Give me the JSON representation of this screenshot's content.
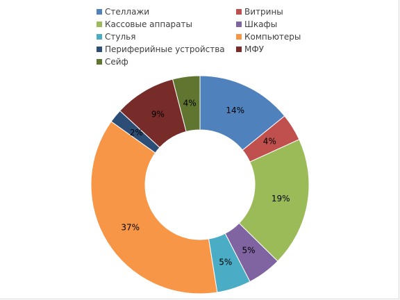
{
  "chart_data": {
    "type": "donut",
    "series": [
      {
        "name": "Стеллажи",
        "value": 14,
        "label": "14%",
        "color": "#4f81bd"
      },
      {
        "name": "Витрины",
        "value": 4,
        "label": "4%",
        "color": "#c0504d"
      },
      {
        "name": "Кассовые аппараты",
        "value": 19,
        "label": "19%",
        "color": "#9bbb59"
      },
      {
        "name": "Шкафы",
        "value": 5,
        "label": "5%",
        "color": "#8064a2"
      },
      {
        "name": "Стулья",
        "value": 5,
        "label": "5%",
        "color": "#4bacc6"
      },
      {
        "name": "Компьютеры",
        "value": 37,
        "label": "37%",
        "color": "#f79646"
      },
      {
        "name": "Периферийные устройства",
        "value": 2,
        "label": "2%",
        "color": "#2c4d75"
      },
      {
        "name": "МФУ",
        "value": 9,
        "label": "9%",
        "color": "#772c2a"
      },
      {
        "name": "Сейф",
        "value": 4,
        "label": "4%",
        "color": "#5f7530"
      }
    ],
    "legend_position": "top",
    "start_angle_deg": 0
  }
}
